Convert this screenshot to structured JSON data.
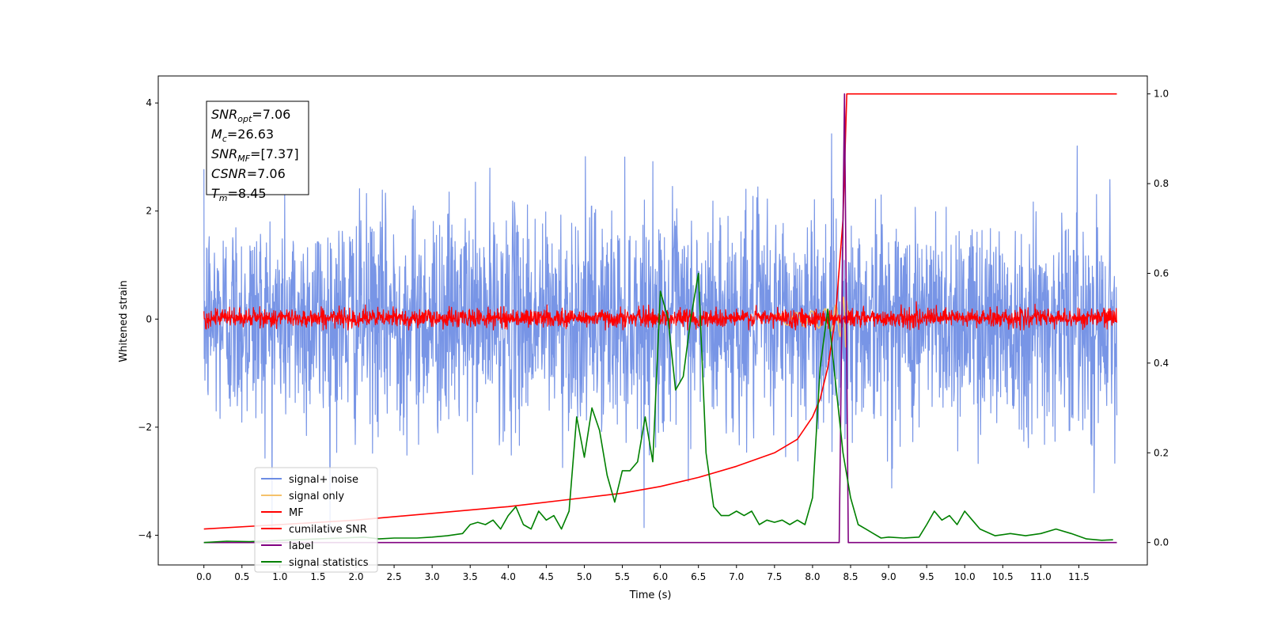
{
  "chart_data": {
    "type": "line",
    "xlabel": "Time (s)",
    "ylabel": "Whitened strain",
    "xlim": [
      -0.6,
      12.4
    ],
    "ylim": [
      -4.55,
      4.5
    ],
    "y2lim": [
      -0.05,
      1.04
    ],
    "xticks": [
      0.0,
      0.5,
      1.0,
      1.5,
      2.0,
      2.5,
      3.0,
      3.5,
      4.0,
      4.5,
      5.0,
      5.5,
      6.0,
      6.5,
      7.0,
      7.5,
      8.0,
      8.5,
      9.0,
      9.5,
      10.0,
      10.5,
      11.0,
      11.5
    ],
    "xtick_labels": [
      "0.0",
      "0.5",
      "1.0",
      "1.5",
      "2.0",
      "2.5",
      "3.0",
      "3.5",
      "4.0",
      "4.5",
      "5.0",
      "5.5",
      "6.0",
      "6.5",
      "7.0",
      "7.5",
      "8.0",
      "8.5",
      "9.0",
      "9.5",
      "10.0",
      "10.5",
      "11.0",
      "11.5"
    ],
    "yticks": [
      -4,
      -2,
      0,
      2,
      4
    ],
    "ytick_labels": [
      "−4",
      "−2",
      "0",
      "2",
      "4"
    ],
    "y2ticks": [
      0.0,
      0.2,
      0.4,
      0.6,
      0.8,
      1.0
    ],
    "y2tick_labels": [
      "0.0",
      "0.2",
      "0.4",
      "0.6",
      "0.8",
      "1.0"
    ],
    "annotation": [
      {
        "main": "SNR",
        "sub": "opt",
        "rest": "=7.06"
      },
      {
        "main": "M",
        "sub": "c",
        "rest": "=26.63"
      },
      {
        "main": "SNR",
        "sub": "MF",
        "rest": "=[7.37]"
      },
      {
        "main": "CSNR",
        "sub": "",
        "rest": "=7.06"
      },
      {
        "main": "T",
        "sub": "m",
        "rest": "=8.45"
      }
    ],
    "legend_position": "lower-left",
    "series": [
      {
        "name": "signal+ noise",
        "color": "#6d8ce4",
        "axis": "left",
        "style": "noise",
        "x_range": [
          0.0,
          12.0
        ],
        "amplitude_sd": 1.0,
        "peak_range": [
          -3.9,
          3.9
        ]
      },
      {
        "name": "signal only",
        "color": "#f5c26b",
        "axis": "left",
        "style": "chirp",
        "merger_time": 8.45
      },
      {
        "name": "MF",
        "color": "#ff0000",
        "axis": "left",
        "style": "noise",
        "x_range": [
          0.0,
          12.0
        ],
        "amplitude_sd": 0.12,
        "peak_range": [
          -0.2,
          0.6
        ]
      },
      {
        "name": "cumilative SNR",
        "color": "#ff0000",
        "axis": "right",
        "x": [
          0.0,
          1.0,
          2.0,
          3.0,
          4.0,
          5.0,
          5.5,
          6.0,
          6.5,
          7.0,
          7.5,
          7.8,
          8.0,
          8.1,
          8.2,
          8.3,
          8.4,
          8.45,
          8.5,
          12.0
        ],
        "y": [
          0.03,
          0.04,
          0.05,
          0.065,
          0.08,
          0.1,
          0.11,
          0.125,
          0.145,
          0.17,
          0.2,
          0.23,
          0.28,
          0.32,
          0.39,
          0.5,
          0.72,
          1.0,
          1.0,
          1.0
        ]
      },
      {
        "name": "label",
        "color": "#800080",
        "axis": "right",
        "x": [
          0.0,
          8.35,
          8.42,
          8.47,
          12.0
        ],
        "y": [
          0.0,
          0.0,
          1.0,
          0.0,
          0.0
        ]
      },
      {
        "name": "signal statistics",
        "color": "#008000",
        "axis": "right",
        "x": [
          0.0,
          0.3,
          0.6,
          0.9,
          1.2,
          1.5,
          1.8,
          2.1,
          2.3,
          2.5,
          2.8,
          3.0,
          3.2,
          3.4,
          3.5,
          3.6,
          3.7,
          3.8,
          3.9,
          4.0,
          4.1,
          4.2,
          4.3,
          4.4,
          4.5,
          4.6,
          4.7,
          4.8,
          4.9,
          5.0,
          5.1,
          5.2,
          5.3,
          5.4,
          5.5,
          5.6,
          5.7,
          5.8,
          5.9,
          6.0,
          6.1,
          6.2,
          6.3,
          6.4,
          6.5,
          6.6,
          6.7,
          6.8,
          6.9,
          7.0,
          7.1,
          7.2,
          7.3,
          7.4,
          7.5,
          7.6,
          7.7,
          7.8,
          7.9,
          8.0,
          8.1,
          8.2,
          8.3,
          8.4,
          8.5,
          8.6,
          8.7,
          8.8,
          8.9,
          9.0,
          9.2,
          9.4,
          9.5,
          9.6,
          9.7,
          9.8,
          9.9,
          10.0,
          10.1,
          10.2,
          10.4,
          10.6,
          10.8,
          11.0,
          11.2,
          11.4,
          11.6,
          11.8,
          11.95
        ],
        "y": [
          0.0,
          0.003,
          0.002,
          0.004,
          0.006,
          0.008,
          0.01,
          0.012,
          0.008,
          0.01,
          0.01,
          0.012,
          0.015,
          0.02,
          0.04,
          0.045,
          0.04,
          0.05,
          0.03,
          0.06,
          0.08,
          0.04,
          0.03,
          0.07,
          0.05,
          0.06,
          0.03,
          0.07,
          0.28,
          0.19,
          0.3,
          0.25,
          0.15,
          0.09,
          0.16,
          0.16,
          0.18,
          0.28,
          0.18,
          0.56,
          0.5,
          0.34,
          0.37,
          0.5,
          0.6,
          0.2,
          0.08,
          0.06,
          0.06,
          0.07,
          0.06,
          0.07,
          0.04,
          0.05,
          0.045,
          0.05,
          0.04,
          0.05,
          0.04,
          0.1,
          0.39,
          0.52,
          0.36,
          0.2,
          0.1,
          0.04,
          0.03,
          0.02,
          0.01,
          0.012,
          0.01,
          0.012,
          0.04,
          0.07,
          0.05,
          0.06,
          0.04,
          0.07,
          0.05,
          0.03,
          0.015,
          0.02,
          0.015,
          0.02,
          0.03,
          0.02,
          0.008,
          0.005,
          0.006
        ]
      }
    ]
  }
}
